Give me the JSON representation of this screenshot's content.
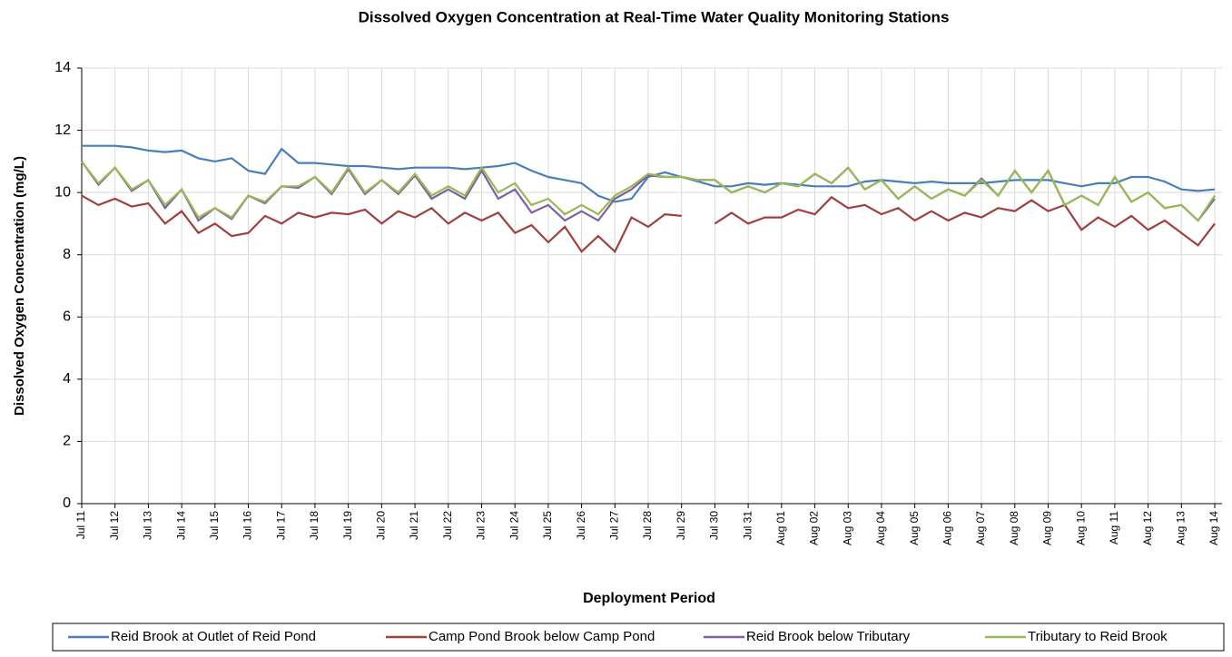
{
  "chart_data": {
    "type": "line",
    "title": "Dissolved Oxygen Concentration at Real-Time Water Quality Monitoring Stations",
    "x_label": "Deployment Period",
    "y_label": "Dissolved  Oxygen Concentration (mg/L)",
    "categories": [
      "Jul 11",
      null,
      "Jul 12",
      null,
      "Jul 13",
      null,
      "Jul 14",
      null,
      "Jul 15",
      null,
      "Jul 16",
      null,
      "Jul 17",
      null,
      "Jul 18",
      null,
      "Jul 19",
      null,
      "Jul 20",
      null,
      "Jul 21",
      null,
      "Jul 22",
      null,
      "Jul 23",
      null,
      "Jul 24",
      null,
      "Jul 25",
      null,
      "Jul 26",
      null,
      "Jul 27",
      null,
      "Jul 28",
      null,
      "Jul 29",
      null,
      "Jul 30",
      null,
      "Jul 31",
      null,
      "Aug 01",
      null,
      "Aug 02",
      null,
      "Aug 03",
      null,
      "Aug 04",
      null,
      "Aug 05",
      null,
      "Aug 06",
      null,
      "Aug 07",
      null,
      "Aug 08",
      null,
      "Aug 09",
      null,
      "Aug 10",
      null,
      "Aug 11",
      null,
      "Aug 12",
      null,
      "Aug 13",
      null,
      "Aug 14"
    ],
    "ylim": [
      0,
      14
    ],
    "yticks": [
      0,
      2,
      4,
      6,
      8,
      10,
      12,
      14
    ],
    "grid": true,
    "series": [
      {
        "name": "Reid Brook at Outlet of Reid Pond",
        "color": "#4a7ebb",
        "values": [
          11.5,
          11.5,
          11.5,
          11.45,
          11.35,
          11.3,
          11.35,
          11.1,
          11.0,
          11.1,
          10.7,
          10.6,
          11.4,
          10.95,
          10.95,
          10.9,
          10.85,
          10.85,
          10.8,
          10.75,
          10.8,
          10.8,
          10.8,
          10.75,
          10.8,
          10.85,
          10.95,
          10.7,
          10.5,
          10.4,
          10.3,
          9.9,
          9.7,
          9.8,
          10.5,
          10.65,
          10.5,
          10.35,
          10.2,
          10.2,
          10.3,
          10.25,
          10.3,
          10.25,
          10.2,
          10.2,
          10.2,
          10.35,
          10.4,
          10.35,
          10.3,
          10.35,
          10.3,
          10.3,
          10.3,
          10.35,
          10.4,
          10.4,
          10.4,
          10.3,
          10.2,
          10.3,
          10.3,
          10.5,
          10.5,
          10.35,
          10.1,
          10.05,
          10.1
        ]
      },
      {
        "name": "Camp Pond Brook below Camp Pond",
        "color": "#a0403e",
        "values": [
          9.9,
          9.6,
          9.8,
          9.55,
          9.65,
          9.0,
          9.4,
          8.7,
          9.0,
          8.6,
          8.7,
          9.25,
          9.0,
          9.35,
          9.2,
          9.35,
          9.3,
          9.45,
          9.0,
          9.4,
          9.2,
          9.5,
          9.0,
          9.35,
          9.1,
          9.35,
          8.7,
          8.95,
          8.4,
          8.9,
          8.1,
          8.6,
          8.1,
          9.2,
          8.9,
          9.3,
          9.25,
          null,
          9.0,
          9.35,
          9.0,
          9.2,
          9.2,
          9.45,
          9.3,
          9.85,
          9.5,
          9.6,
          9.3,
          9.5,
          9.1,
          9.4,
          9.1,
          9.35,
          9.2,
          9.5,
          9.4,
          9.75,
          9.4,
          9.6,
          8.8,
          9.2,
          8.9,
          9.25,
          8.8,
          9.1,
          8.7,
          8.3,
          9.0
        ]
      },
      {
        "name": "Reid Brook below Tributary",
        "color": "#7d60a0",
        "values": [
          11.0,
          10.25,
          10.8,
          10.05,
          10.4,
          9.5,
          10.1,
          9.1,
          9.5,
          9.15,
          9.9,
          9.65,
          10.2,
          10.15,
          10.5,
          9.95,
          10.75,
          9.95,
          10.4,
          9.95,
          10.55,
          9.8,
          10.1,
          9.8,
          10.7,
          9.8,
          10.1,
          9.35,
          9.6,
          9.1,
          9.4,
          9.1,
          9.8,
          10.1,
          10.55,
          10.5,
          10.5,
          10.4,
          10.4,
          10.0,
          10.2,
          10.0,
          10.3,
          10.2,
          10.6,
          10.3,
          10.8,
          10.1,
          10.4,
          9.8,
          10.2,
          9.8,
          10.1,
          9.9,
          10.45,
          9.9,
          10.7,
          10.0,
          10.7,
          9.6,
          9.9,
          9.6,
          10.5,
          9.7,
          10.0,
          9.5,
          9.6,
          9.1,
          9.8
        ]
      },
      {
        "name": "Tributary to Reid Brook",
        "color": "#98b954",
        "values": [
          11.0,
          10.3,
          10.8,
          10.1,
          10.4,
          9.6,
          10.1,
          9.2,
          9.5,
          9.2,
          9.9,
          9.7,
          10.2,
          10.2,
          10.5,
          10.0,
          10.8,
          10.0,
          10.4,
          10.0,
          10.6,
          9.9,
          10.2,
          9.9,
          10.8,
          10.0,
          10.3,
          9.6,
          9.8,
          9.3,
          9.6,
          9.3,
          9.9,
          10.2,
          10.6,
          10.5,
          10.5,
          10.4,
          10.4,
          10.0,
          10.2,
          10.0,
          10.3,
          10.2,
          10.6,
          10.3,
          10.8,
          10.1,
          10.4,
          9.8,
          10.2,
          9.8,
          10.1,
          9.9,
          10.4,
          9.9,
          10.7,
          10.0,
          10.7,
          9.6,
          9.9,
          9.6,
          10.5,
          9.7,
          10.0,
          9.5,
          9.6,
          9.1,
          9.9
        ]
      }
    ]
  }
}
